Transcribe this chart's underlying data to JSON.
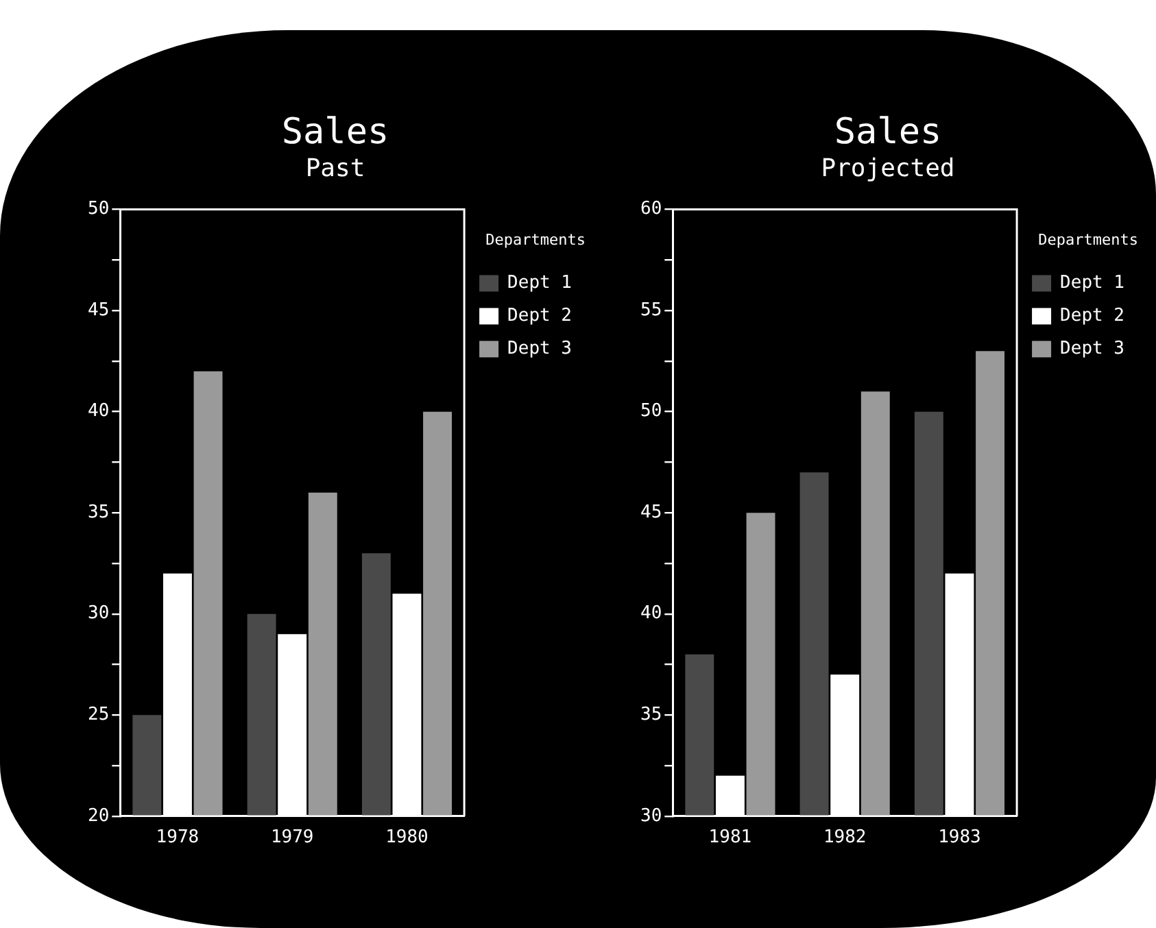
{
  "chart_data": [
    {
      "type": "bar",
      "title": "Sales",
      "subtitle": "Past",
      "legend_title": "Departments",
      "categories": [
        "1978",
        "1979",
        "1980"
      ],
      "series": [
        {
          "name": "Dept 1",
          "color": "#4a4a4a",
          "values": [
            25,
            30,
            33
          ]
        },
        {
          "name": "Dept 2",
          "color": "#ffffff",
          "values": [
            32,
            29,
            31
          ]
        },
        {
          "name": "Dept 3",
          "color": "#9a9a9a",
          "values": [
            42,
            36,
            40
          ]
        }
      ],
      "ylim": [
        20,
        50
      ],
      "yticks": [
        20,
        {
          "value": 22.5,
          "label": null
        },
        25,
        {
          "value": 27.5,
          "label": null
        },
        30,
        {
          "value": 32.5,
          "label": null
        },
        35,
        {
          "value": 37.5,
          "label": null
        },
        40,
        {
          "value": 42.5,
          "label": null
        },
        45,
        {
          "value": 47.5,
          "label": null
        },
        50
      ],
      "grid": false,
      "legend": "top right"
    },
    {
      "type": "bar",
      "title": "Sales",
      "subtitle": "Projected",
      "legend_title": "Departments",
      "categories": [
        "1981",
        "1982",
        "1983"
      ],
      "series": [
        {
          "name": "Dept 1",
          "color": "#4a4a4a",
          "values": [
            38,
            47,
            50
          ]
        },
        {
          "name": "Dept 2",
          "color": "#ffffff",
          "values": [
            32,
            37,
            42
          ]
        },
        {
          "name": "Dept 3",
          "color": "#9a9a9a",
          "values": [
            45,
            51,
            53
          ]
        }
      ],
      "ylim": [
        30,
        60
      ],
      "yticks": [
        30,
        {
          "value": 32.5,
          "label": null
        },
        35,
        {
          "value": 37.5,
          "label": null
        },
        40,
        {
          "value": 42.5,
          "label": null
        },
        45,
        {
          "value": 47.5,
          "label": null
        },
        50,
        {
          "value": 52.5,
          "label": null
        },
        55,
        {
          "value": 57.5,
          "label": null
        },
        60
      ],
      "grid": false,
      "legend": "top right"
    }
  ]
}
